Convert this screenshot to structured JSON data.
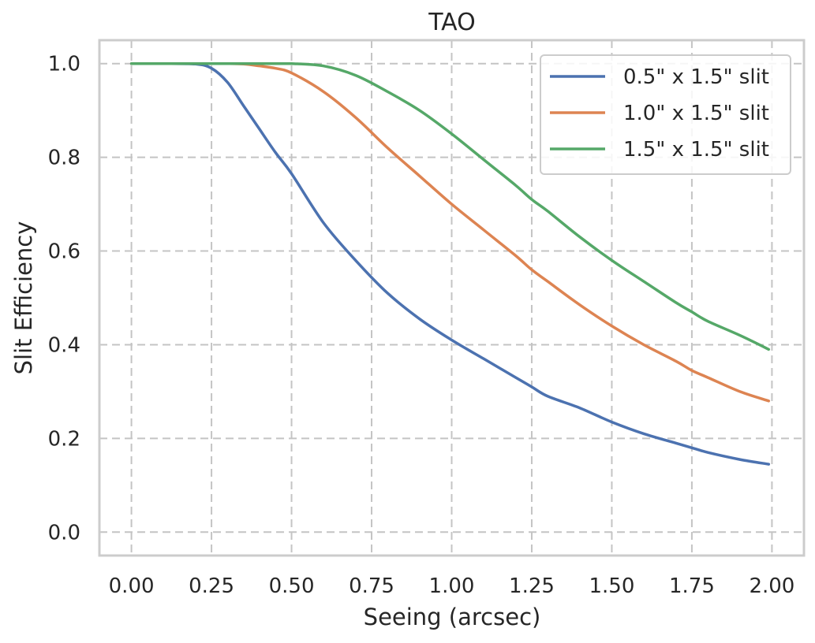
{
  "chart_data": {
    "type": "line",
    "title": "TAO",
    "xlabel": "Seeing (arcsec)",
    "ylabel": "Slit Efficiency",
    "xlim": [
      -0.1,
      2.1
    ],
    "ylim": [
      -0.05,
      1.05
    ],
    "xticks": [
      "0.00",
      "0.25",
      "0.50",
      "0.75",
      "1.00",
      "1.25",
      "1.50",
      "1.75",
      "2.00"
    ],
    "yticks": [
      "0.0",
      "0.2",
      "0.4",
      "0.6",
      "0.8",
      "1.0"
    ],
    "grid": true,
    "legend_position": "top-right",
    "x": [
      0.0,
      0.1,
      0.2,
      0.25,
      0.3,
      0.35,
      0.4,
      0.45,
      0.5,
      0.6,
      0.7,
      0.8,
      0.9,
      1.0,
      1.1,
      1.2,
      1.25,
      1.3,
      1.4,
      1.5,
      1.6,
      1.7,
      1.75,
      1.8,
      1.9,
      1.99
    ],
    "series": [
      {
        "name": "0.5\" x 1.5\" slit",
        "color": "#4c72b0",
        "values": [
          1.0,
          1.0,
          0.999,
          0.99,
          0.96,
          0.91,
          0.86,
          0.81,
          0.765,
          0.66,
          0.58,
          0.51,
          0.455,
          0.41,
          0.37,
          0.33,
          0.31,
          0.29,
          0.265,
          0.235,
          0.21,
          0.19,
          0.18,
          0.17,
          0.155,
          0.145
        ]
      },
      {
        "name": "1.0\" x 1.5\" slit",
        "color": "#dd8452",
        "values": [
          1.0,
          1.0,
          1.0,
          1.0,
          1.0,
          0.999,
          0.995,
          0.99,
          0.98,
          0.94,
          0.885,
          0.82,
          0.76,
          0.7,
          0.645,
          0.59,
          0.56,
          0.535,
          0.485,
          0.44,
          0.4,
          0.365,
          0.345,
          0.33,
          0.3,
          0.28
        ]
      },
      {
        "name": "1.5\" x 1.5\" slit",
        "color": "#55a868",
        "values": [
          1.0,
          1.0,
          1.0,
          1.0,
          1.0,
          1.0,
          1.0,
          1.0,
          1.0,
          0.995,
          0.975,
          0.94,
          0.9,
          0.85,
          0.795,
          0.74,
          0.71,
          0.685,
          0.63,
          0.58,
          0.535,
          0.49,
          0.47,
          0.45,
          0.42,
          0.39
        ]
      }
    ]
  }
}
